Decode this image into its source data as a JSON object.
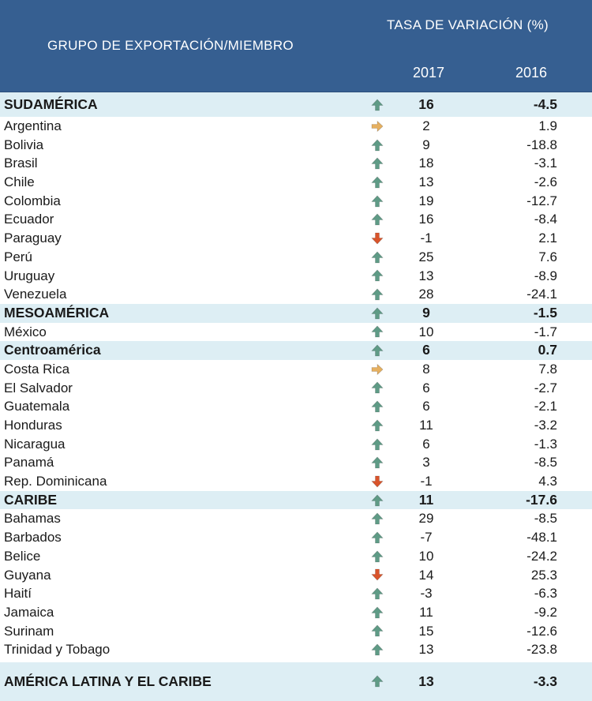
{
  "header": {
    "group_label": "GRUPO DE EXPORTACIÓN/MIEMBRO",
    "rate_label": "TASA DE VARIACIÓN (%)",
    "year1": "2017",
    "year2": "2016"
  },
  "colors": {
    "header_bg": "#365f91",
    "group_bg": "#ddeef4",
    "up": "#5f9b86",
    "right": "#e6b060",
    "down": "#d9542b"
  },
  "rows": [
    {
      "name": "SUDAMÉRICA",
      "trend": "up",
      "v2017": "16",
      "v2016": "-4.5",
      "type": "group"
    },
    {
      "name": "Argentina",
      "trend": "right",
      "v2017": "2",
      "v2016": "1.9",
      "type": "member"
    },
    {
      "name": "Bolivia",
      "trend": "up",
      "v2017": "9",
      "v2016": "-18.8",
      "type": "member"
    },
    {
      "name": "Brasil",
      "trend": "up",
      "v2017": "18",
      "v2016": "-3.1",
      "type": "member"
    },
    {
      "name": "Chile",
      "trend": "up",
      "v2017": "13",
      "v2016": "-2.6",
      "type": "member"
    },
    {
      "name": "Colombia",
      "trend": "up",
      "v2017": "19",
      "v2016": "-12.7",
      "type": "member"
    },
    {
      "name": "Ecuador",
      "trend": "up",
      "v2017": "16",
      "v2016": "-8.4",
      "type": "member"
    },
    {
      "name": "Paraguay",
      "trend": "down",
      "v2017": "-1",
      "v2016": "2.1",
      "type": "member"
    },
    {
      "name": "Perú",
      "trend": "up",
      "v2017": "25",
      "v2016": "7.6",
      "type": "member"
    },
    {
      "name": "Uruguay",
      "trend": "up",
      "v2017": "13",
      "v2016": "-8.9",
      "type": "member"
    },
    {
      "name": "Venezuela",
      "trend": "up",
      "v2017": "28",
      "v2016": "-24.1",
      "type": "member"
    },
    {
      "name": "MESOAMÉRICA",
      "trend": "up",
      "v2017": "9",
      "v2016": "-1.5",
      "type": "group"
    },
    {
      "name": "México",
      "trend": "up",
      "v2017": "10",
      "v2016": "-1.7",
      "type": "member"
    },
    {
      "name": "Centroamérica",
      "trend": "up",
      "v2017": "6",
      "v2016": "0.7",
      "type": "group"
    },
    {
      "name": "Costa Rica",
      "trend": "right",
      "v2017": "8",
      "v2016": "7.8",
      "type": "member"
    },
    {
      "name": "El Salvador",
      "trend": "up",
      "v2017": "6",
      "v2016": "-2.7",
      "type": "member"
    },
    {
      "name": "Guatemala",
      "trend": "up",
      "v2017": "6",
      "v2016": "-2.1",
      "type": "member"
    },
    {
      "name": "Honduras",
      "trend": "up",
      "v2017": "11",
      "v2016": "-3.2",
      "type": "member"
    },
    {
      "name": "Nicaragua",
      "trend": "up",
      "v2017": "6",
      "v2016": "-1.3",
      "type": "member"
    },
    {
      "name": "Panamá",
      "trend": "up",
      "v2017": "3",
      "v2016": "-8.5",
      "type": "member"
    },
    {
      "name": "Rep. Dominicana",
      "trend": "down",
      "v2017": "-1",
      "v2016": "4.3",
      "type": "member"
    },
    {
      "name": "CARIBE",
      "trend": "up",
      "v2017": "11",
      "v2016": "-17.6",
      "type": "group"
    },
    {
      "name": "Bahamas",
      "trend": "up",
      "v2017": "29",
      "v2016": "-8.5",
      "type": "member"
    },
    {
      "name": "Barbados",
      "trend": "up",
      "v2017": "-7",
      "v2016": "-48.1",
      "type": "member"
    },
    {
      "name": "Belice",
      "trend": "up",
      "v2017": "10",
      "v2016": "-24.2",
      "type": "member"
    },
    {
      "name": "Guyana",
      "trend": "down",
      "v2017": "14",
      "v2016": "25.3",
      "type": "member"
    },
    {
      "name": "Haití",
      "trend": "up",
      "v2017": "-3",
      "v2016": "-6.3",
      "type": "member"
    },
    {
      "name": "Jamaica",
      "trend": "up",
      "v2017": "11",
      "v2016": "-9.2",
      "type": "member"
    },
    {
      "name": "Surinam",
      "trend": "up",
      "v2017": "15",
      "v2016": "-12.6",
      "type": "member"
    },
    {
      "name": "Trinidad y Tobago",
      "trend": "up",
      "v2017": "13",
      "v2016": "-23.8",
      "type": "member"
    },
    {
      "name": "AMÉRICA LATINA Y EL CARIBE",
      "trend": "up",
      "v2017": "13",
      "v2016": "-3.3",
      "type": "total"
    }
  ]
}
